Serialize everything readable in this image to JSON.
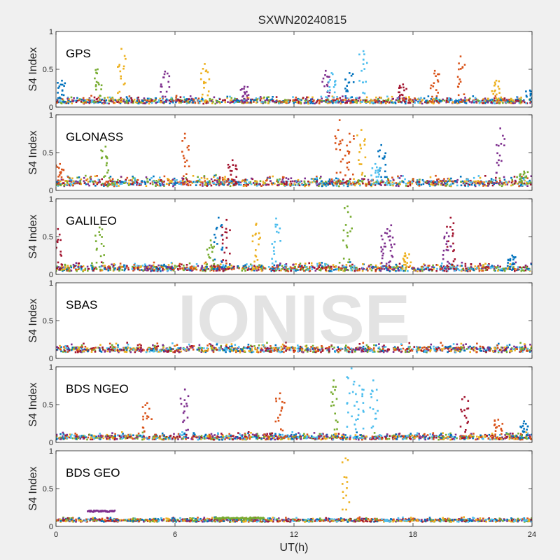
{
  "chart_data": {
    "type": "scatter",
    "title": "SXWN20240815",
    "xlabel": "UT(h)",
    "ylabel": "S4 Index",
    "xlim": [
      0,
      24
    ],
    "ylim": [
      0,
      1
    ],
    "x_ticks": [
      0,
      6,
      12,
      18,
      24
    ],
    "y_ticks": [
      0,
      0.5,
      1
    ],
    "x_tick_labels": [
      "0",
      "6",
      "12",
      "18",
      "24"
    ],
    "y_tick_labels": [
      "0",
      "0.5",
      "1"
    ],
    "watermark": "IONISE",
    "grid": false,
    "series_colors": [
      "#0072bd",
      "#d95319",
      "#edb120",
      "#7e2f8e",
      "#77ac30",
      "#4dbeee",
      "#a2142f"
    ],
    "panels": [
      {
        "label": "GPS",
        "baseline": {
          "level": 0.07,
          "spread": 0.05
        },
        "spikes": [
          {
            "x": 0.3,
            "peak": 0.35,
            "color": 0
          },
          {
            "x": 2.1,
            "peak": 0.5,
            "color": 4
          },
          {
            "x": 3.3,
            "peak": 0.77,
            "color": 2
          },
          {
            "x": 5.5,
            "peak": 0.47,
            "color": 3
          },
          {
            "x": 7.5,
            "peak": 0.57,
            "color": 2
          },
          {
            "x": 9.5,
            "peak": 0.27,
            "color": 3
          },
          {
            "x": 13.6,
            "peak": 0.48,
            "color": 3
          },
          {
            "x": 13.9,
            "peak": 0.45,
            "color": 5
          },
          {
            "x": 14.8,
            "peak": 0.45,
            "color": 0
          },
          {
            "x": 15.5,
            "peak": 0.74,
            "color": 5
          },
          {
            "x": 17.5,
            "peak": 0.3,
            "color": 6
          },
          {
            "x": 19.1,
            "peak": 0.48,
            "color": 1
          },
          {
            "x": 20.4,
            "peak": 0.67,
            "color": 1
          },
          {
            "x": 22.2,
            "peak": 0.35,
            "color": 2
          },
          {
            "x": 23.9,
            "peak": 0.22,
            "color": 0
          }
        ]
      },
      {
        "label": "GLONASS",
        "baseline": {
          "level": 0.09,
          "spread": 0.07
        },
        "spikes": [
          {
            "x": 0.2,
            "peak": 0.35,
            "color": 1
          },
          {
            "x": 2.5,
            "peak": 0.58,
            "color": 4
          },
          {
            "x": 6.5,
            "peak": 0.75,
            "color": 1
          },
          {
            "x": 8.9,
            "peak": 0.4,
            "color": 6
          },
          {
            "x": 14.3,
            "peak": 0.93,
            "color": 1
          },
          {
            "x": 14.8,
            "peak": 0.75,
            "color": 1
          },
          {
            "x": 15.4,
            "peak": 0.8,
            "color": 2
          },
          {
            "x": 16.4,
            "peak": 0.6,
            "color": 0
          },
          {
            "x": 16.1,
            "peak": 0.35,
            "color": 5
          },
          {
            "x": 22.4,
            "peak": 0.82,
            "color": 3
          },
          {
            "x": 23.6,
            "peak": 0.25,
            "color": 4
          }
        ]
      },
      {
        "label": "GALILEO",
        "baseline": {
          "level": 0.07,
          "spread": 0.06
        },
        "spikes": [
          {
            "x": 0.1,
            "peak": 0.6,
            "color": 6
          },
          {
            "x": 2.2,
            "peak": 0.62,
            "color": 4
          },
          {
            "x": 7.8,
            "peak": 0.45,
            "color": 4
          },
          {
            "x": 8.2,
            "peak": 0.75,
            "color": 0
          },
          {
            "x": 8.6,
            "peak": 0.72,
            "color": 6
          },
          {
            "x": 10.1,
            "peak": 0.67,
            "color": 2
          },
          {
            "x": 11.1,
            "peak": 0.74,
            "color": 5
          },
          {
            "x": 14.7,
            "peak": 0.9,
            "color": 4
          },
          {
            "x": 16.6,
            "peak": 0.55,
            "color": 3
          },
          {
            "x": 16.9,
            "peak": 0.65,
            "color": 3
          },
          {
            "x": 19.9,
            "peak": 0.75,
            "color": 6
          },
          {
            "x": 19.7,
            "peak": 0.55,
            "color": 3
          },
          {
            "x": 23.0,
            "peak": 0.25,
            "color": 0
          },
          {
            "x": 17.6,
            "peak": 0.28,
            "color": 2
          }
        ]
      },
      {
        "label": "SBAS",
        "baseline": {
          "level": 0.11,
          "spread": 0.06
        },
        "spikes": []
      },
      {
        "label": "BDS NGEO",
        "baseline": {
          "level": 0.06,
          "spread": 0.05
        },
        "spikes": [
          {
            "x": 4.6,
            "peak": 0.52,
            "color": 1
          },
          {
            "x": 6.5,
            "peak": 0.7,
            "color": 3
          },
          {
            "x": 11.3,
            "peak": 0.65,
            "color": 1
          },
          {
            "x": 14.0,
            "peak": 0.82,
            "color": 4
          },
          {
            "x": 14.9,
            "peak": 0.98,
            "color": 5
          },
          {
            "x": 15.3,
            "peak": 0.75,
            "color": 5
          },
          {
            "x": 16.0,
            "peak": 0.82,
            "color": 5
          },
          {
            "x": 20.6,
            "peak": 0.6,
            "color": 6
          },
          {
            "x": 22.3,
            "peak": 0.3,
            "color": 1
          },
          {
            "x": 23.6,
            "peak": 0.28,
            "color": 0
          }
        ]
      },
      {
        "label": "BDS GEO",
        "baseline": {
          "level": 0.075,
          "spread": 0.03
        },
        "spikes": [
          {
            "x": 14.6,
            "peak": 0.9,
            "color": 2
          }
        ],
        "segments": [
          {
            "x0": 1.6,
            "x1": 3.0,
            "y": 0.2,
            "color": 3
          },
          {
            "x0": 8.0,
            "x1": 10.5,
            "y": 0.11,
            "color": 4
          }
        ]
      }
    ]
  }
}
